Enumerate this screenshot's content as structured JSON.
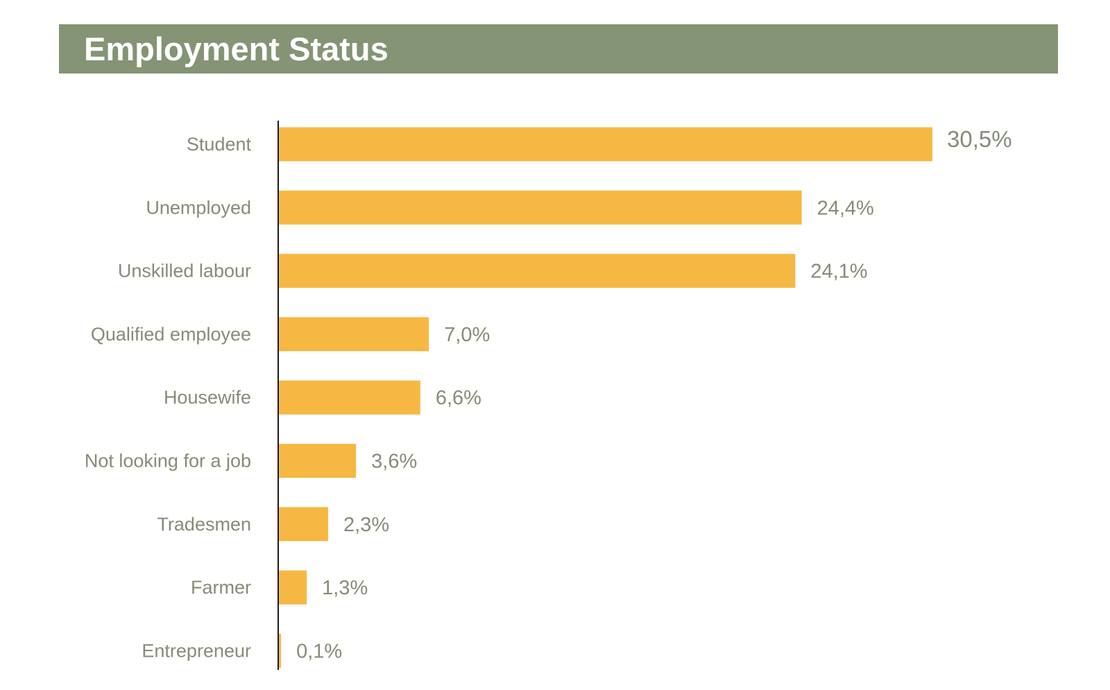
{
  "header": {
    "title": "Employment Status"
  },
  "colors": {
    "header_bg": "#849475",
    "bar": "#F6B843",
    "text": "#848C78",
    "axis": "#1a1a1a"
  },
  "chart_data": {
    "type": "bar",
    "orientation": "horizontal",
    "title": "Employment Status",
    "xlabel": "",
    "ylabel": "",
    "xlim": [
      0,
      30.5
    ],
    "grid": false,
    "legend": "none",
    "categories": [
      "Student",
      "Unemployed",
      "Unskilled labour",
      "Qualified employee",
      "Housewife",
      "Not looking for a job",
      "Tradesmen",
      "Farmer",
      "Entrepreneur"
    ],
    "values": [
      30.5,
      24.4,
      24.1,
      7.0,
      6.6,
      3.6,
      2.3,
      1.3,
      0.1
    ],
    "value_labels": [
      "30,5%",
      "24,4%",
      "24,1%",
      "7,0%",
      "6,6%",
      "3,6%",
      "2,3%",
      "1,3%",
      "0,1%"
    ]
  }
}
